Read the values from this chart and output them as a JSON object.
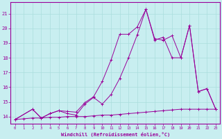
{
  "bg_color": "#c8eef0",
  "line_color": "#990099",
  "grid_color": "#aadddd",
  "xlabel": "Windchill (Refroidissement éolien,°C)",
  "xlabel_color": "#990099",
  "tick_color": "#990099",
  "xlim": [
    -0.5,
    23.5
  ],
  "ylim": [
    13.5,
    21.8
  ],
  "yticks": [
    14,
    15,
    16,
    17,
    18,
    19,
    20,
    21
  ],
  "xticks": [
    0,
    1,
    2,
    3,
    4,
    5,
    6,
    7,
    8,
    9,
    10,
    11,
    12,
    13,
    14,
    15,
    16,
    17,
    18,
    19,
    20,
    21,
    22,
    23
  ],
  "series1_x": [
    0,
    1,
    2,
    3,
    4,
    5,
    6,
    7,
    8,
    9,
    10,
    11,
    12,
    13,
    14,
    15,
    16,
    17,
    18,
    19,
    20,
    21,
    22,
    23
  ],
  "series1_y": [
    13.8,
    13.85,
    13.9,
    13.9,
    13.95,
    13.95,
    14.0,
    14.0,
    14.0,
    14.05,
    14.1,
    14.1,
    14.15,
    14.2,
    14.25,
    14.3,
    14.35,
    14.4,
    14.45,
    14.5,
    14.5,
    14.5,
    14.5,
    14.5
  ],
  "series2_x": [
    0,
    2,
    3,
    4,
    5,
    6,
    7,
    8,
    9,
    10,
    11,
    12,
    13,
    14,
    15,
    16,
    17,
    18,
    19,
    20,
    21,
    22,
    23
  ],
  "series2_y": [
    13.8,
    14.5,
    13.9,
    14.2,
    14.4,
    14.2,
    14.1,
    14.85,
    15.3,
    14.85,
    15.5,
    16.6,
    18.0,
    19.55,
    21.3,
    19.2,
    19.4,
    18.0,
    18.0,
    20.2,
    15.7,
    15.9,
    14.5
  ],
  "series3_x": [
    0,
    2,
    3,
    4,
    5,
    6,
    7,
    8,
    9,
    10,
    11,
    12,
    13,
    14,
    15,
    16,
    17,
    18,
    19,
    20,
    21,
    22,
    23
  ],
  "series3_y": [
    13.8,
    14.5,
    13.9,
    14.2,
    14.4,
    14.35,
    14.3,
    14.95,
    15.35,
    16.4,
    17.85,
    19.6,
    19.6,
    20.1,
    21.3,
    19.3,
    19.2,
    19.5,
    18.0,
    20.2,
    15.7,
    15.9,
    14.5
  ]
}
